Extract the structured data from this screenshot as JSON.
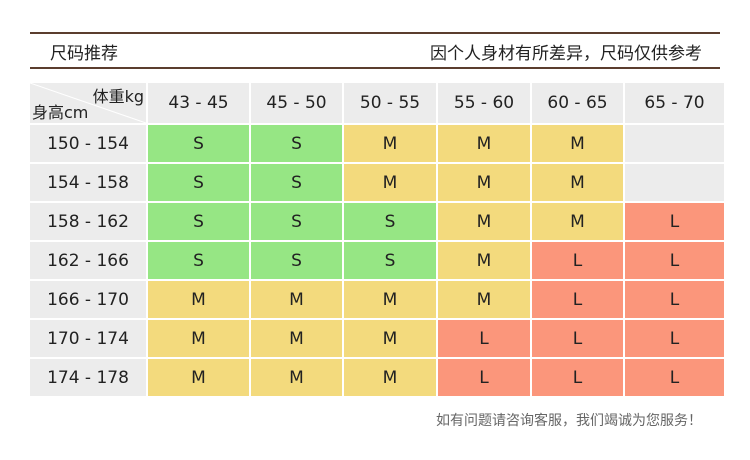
{
  "header": {
    "title": "尺码推荐",
    "note": "因个人身材有所差异，尺码仅供参考"
  },
  "table": {
    "corner_weight": "体重kg",
    "corner_height": "身高cm",
    "weight_columns": [
      "43 - 45",
      "45 - 50",
      "50 - 55",
      "55 - 60",
      "60 - 65",
      "65 - 70"
    ],
    "rows": [
      {
        "height": "150 - 154",
        "sizes": [
          "S",
          "S",
          "M",
          "M",
          "M",
          ""
        ]
      },
      {
        "height": "154 - 158",
        "sizes": [
          "S",
          "S",
          "M",
          "M",
          "M",
          ""
        ]
      },
      {
        "height": "158 - 162",
        "sizes": [
          "S",
          "S",
          "S",
          "M",
          "M",
          "L"
        ]
      },
      {
        "height": "162 - 166",
        "sizes": [
          "S",
          "S",
          "S",
          "M",
          "L",
          "L"
        ]
      },
      {
        "height": "166 - 170",
        "sizes": [
          "M",
          "M",
          "M",
          "M",
          "L",
          "L"
        ]
      },
      {
        "height": "170 - 174",
        "sizes": [
          "M",
          "M",
          "M",
          "L",
          "L",
          "L"
        ]
      },
      {
        "height": "174 - 178",
        "sizes": [
          "M",
          "M",
          "M",
          "L",
          "L",
          "L"
        ]
      }
    ]
  },
  "colors": {
    "S": "#96e684",
    "M": "#f3da7d",
    "L": "#fb967b",
    "empty": "#ececec",
    "header": "#ececec",
    "rule": "#5b3d2e"
  },
  "footer": "如有问题请咨询客服，我们竭诚为您服务！"
}
